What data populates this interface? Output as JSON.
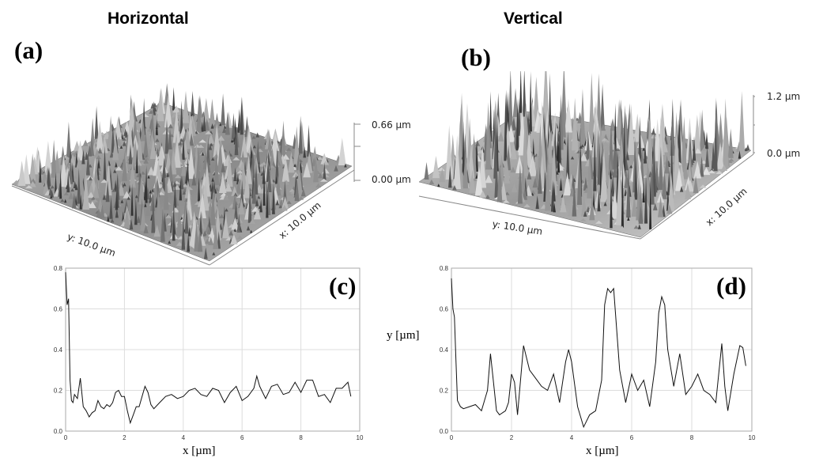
{
  "titles": {
    "left": "Horizontal",
    "right": "Vertical"
  },
  "panels": {
    "a": {
      "letter": "(a)",
      "z_top": "0.66 µm",
      "z_bottom": "0.00 µm",
      "y_axis": "y: 10.0 µm",
      "x_axis": "x: 10.0 µm"
    },
    "b": {
      "letter": "(b)",
      "z_top": "1.2 µm",
      "z_bottom": "0.0 µm",
      "y_axis": "y: 10.0 µm",
      "x_axis": "x: 10.0 µm"
    },
    "c": {
      "letter": "(c)",
      "xlabel": "x [µm]"
    },
    "d": {
      "letter": "(d)",
      "xlabel": "x [µm]",
      "ylabel": "y [µm]"
    }
  },
  "colors": {
    "line": "#111111",
    "grid": "#dddddd",
    "surface_dark": "#3a3a3a",
    "surface_light": "#d8d8d8"
  },
  "chart_data": [
    {
      "type": "line",
      "panel": "c",
      "xlabel": "x [µm]",
      "ylabel": "",
      "xlim": [
        0,
        10
      ],
      "ylim": [
        0,
        0.8
      ],
      "xticks": [
        0,
        2,
        4,
        6,
        8,
        10
      ],
      "yticks": [
        0.0,
        0.2,
        0.4,
        0.6,
        0.8
      ],
      "grid": true,
      "series": [
        {
          "x": [
            0.0,
            0.05,
            0.1,
            0.15,
            0.2,
            0.25,
            0.3,
            0.4,
            0.5,
            0.6,
            0.7,
            0.8,
            0.9,
            1.0,
            1.1,
            1.2,
            1.3,
            1.4,
            1.5,
            1.6,
            1.7,
            1.8,
            1.9,
            2.0,
            2.1,
            2.2,
            2.3,
            2.4,
            2.5,
            2.6,
            2.7,
            2.8,
            2.9,
            3.0,
            3.2,
            3.4,
            3.6,
            3.8,
            4.0,
            4.2,
            4.4,
            4.6,
            4.8,
            5.0,
            5.2,
            5.4,
            5.6,
            5.8,
            6.0,
            6.2,
            6.4,
            6.5,
            6.6,
            6.8,
            7.0,
            7.2,
            7.4,
            7.6,
            7.8,
            8.0,
            8.2,
            8.4,
            8.6,
            8.8,
            9.0,
            9.2,
            9.4,
            9.6,
            9.7
          ],
          "y": [
            0.78,
            0.62,
            0.65,
            0.25,
            0.15,
            0.14,
            0.18,
            0.16,
            0.26,
            0.12,
            0.1,
            0.07,
            0.09,
            0.1,
            0.15,
            0.12,
            0.11,
            0.13,
            0.12,
            0.14,
            0.19,
            0.2,
            0.17,
            0.17,
            0.1,
            0.04,
            0.08,
            0.12,
            0.12,
            0.17,
            0.22,
            0.19,
            0.13,
            0.11,
            0.14,
            0.17,
            0.18,
            0.16,
            0.17,
            0.2,
            0.21,
            0.18,
            0.17,
            0.21,
            0.2,
            0.14,
            0.19,
            0.22,
            0.15,
            0.17,
            0.21,
            0.27,
            0.22,
            0.16,
            0.22,
            0.23,
            0.18,
            0.19,
            0.24,
            0.19,
            0.25,
            0.25,
            0.17,
            0.18,
            0.14,
            0.21,
            0.21,
            0.24,
            0.17
          ]
        }
      ]
    },
    {
      "type": "line",
      "panel": "d",
      "xlabel": "x [µm]",
      "ylabel": "y [µm]",
      "xlim": [
        0,
        10
      ],
      "ylim": [
        0,
        0.8
      ],
      "xticks": [
        0,
        2,
        4,
        6,
        8,
        10
      ],
      "yticks": [
        0.0,
        0.2,
        0.4,
        0.6,
        0.8
      ],
      "grid": true,
      "series": [
        {
          "x": [
            0.0,
            0.05,
            0.1,
            0.15,
            0.2,
            0.3,
            0.4,
            0.6,
            0.8,
            1.0,
            1.1,
            1.2,
            1.3,
            1.4,
            1.5,
            1.6,
            1.8,
            1.9,
            2.0,
            2.1,
            2.2,
            2.4,
            2.6,
            2.8,
            3.0,
            3.2,
            3.4,
            3.6,
            3.8,
            3.9,
            4.0,
            4.2,
            4.4,
            4.6,
            4.8,
            5.0,
            5.1,
            5.2,
            5.3,
            5.4,
            5.6,
            5.8,
            6.0,
            6.2,
            6.4,
            6.6,
            6.8,
            6.9,
            7.0,
            7.1,
            7.2,
            7.4,
            7.6,
            7.8,
            8.0,
            8.2,
            8.4,
            8.6,
            8.8,
            9.0,
            9.1,
            9.2,
            9.4,
            9.6,
            9.7,
            9.8
          ],
          "y": [
            0.75,
            0.6,
            0.56,
            0.35,
            0.15,
            0.12,
            0.11,
            0.12,
            0.13,
            0.1,
            0.15,
            0.2,
            0.38,
            0.24,
            0.1,
            0.08,
            0.1,
            0.14,
            0.28,
            0.24,
            0.08,
            0.42,
            0.3,
            0.26,
            0.22,
            0.2,
            0.28,
            0.14,
            0.34,
            0.4,
            0.34,
            0.12,
            0.02,
            0.08,
            0.1,
            0.25,
            0.62,
            0.7,
            0.68,
            0.7,
            0.3,
            0.14,
            0.28,
            0.2,
            0.25,
            0.12,
            0.34,
            0.58,
            0.66,
            0.62,
            0.4,
            0.22,
            0.38,
            0.18,
            0.22,
            0.28,
            0.2,
            0.18,
            0.14,
            0.43,
            0.22,
            0.1,
            0.28,
            0.42,
            0.41,
            0.32
          ]
        }
      ]
    }
  ]
}
